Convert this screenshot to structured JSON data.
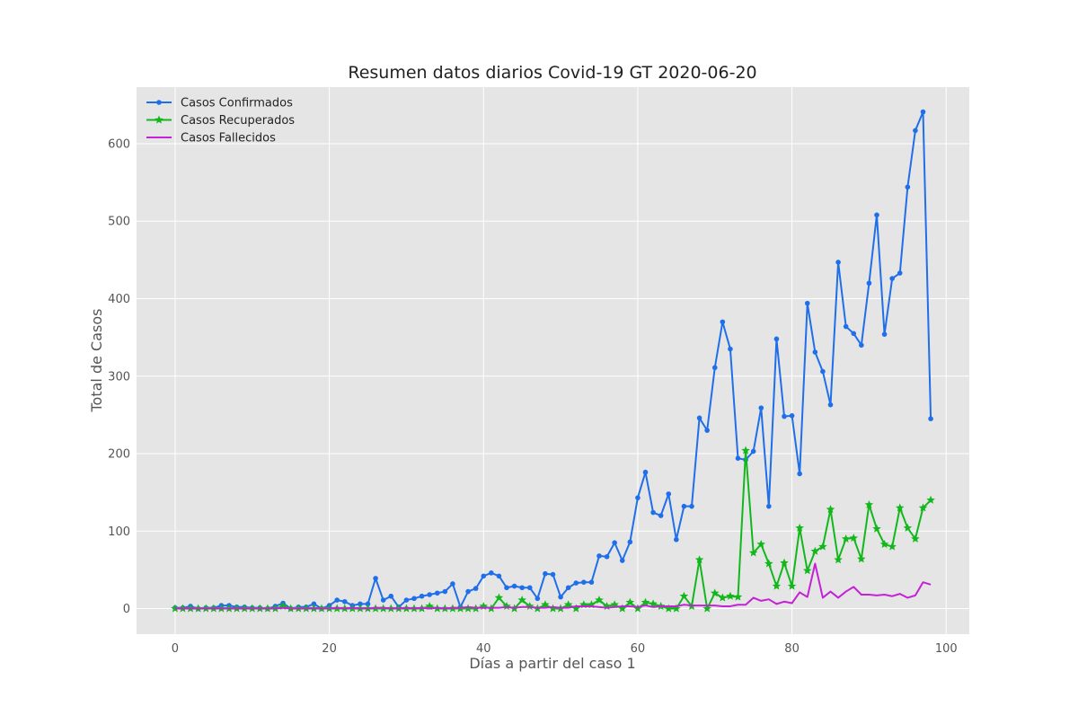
{
  "chart_data": {
    "type": "line",
    "title": "Resumen datos diarios Covid-19 GT 2020-06-20",
    "xlabel": "Días a partir del caso 1",
    "ylabel": "Total de Casos",
    "xlim": [
      -5,
      103
    ],
    "ylim": [
      -33,
      673
    ],
    "xticks": [
      0,
      20,
      40,
      60,
      80,
      100
    ],
    "yticks": [
      0,
      100,
      200,
      300,
      400,
      500,
      600
    ],
    "grid": true,
    "legend_position": "top-left",
    "x": [
      0,
      1,
      2,
      3,
      4,
      5,
      6,
      7,
      8,
      9,
      10,
      11,
      12,
      13,
      14,
      15,
      16,
      17,
      18,
      19,
      20,
      21,
      22,
      23,
      24,
      25,
      26,
      27,
      28,
      29,
      30,
      31,
      32,
      33,
      34,
      35,
      36,
      37,
      38,
      39,
      40,
      41,
      42,
      43,
      44,
      45,
      46,
      47,
      48,
      49,
      50,
      51,
      52,
      53,
      54,
      55,
      56,
      57,
      58,
      59,
      60,
      61,
      62,
      63,
      64,
      65,
      66,
      67,
      68,
      69,
      70,
      71,
      72,
      73,
      74,
      75,
      76,
      77,
      78,
      79,
      80,
      81,
      82,
      83,
      84,
      85,
      86,
      87,
      88,
      89,
      90,
      91,
      92,
      93,
      94,
      95,
      96,
      97,
      98
    ],
    "series": [
      {
        "name": "Casos Confirmados",
        "color": "#1f6fea",
        "marker": "circle",
        "values": [
          1,
          1,
          3,
          0,
          1,
          1,
          4,
          4,
          2,
          2,
          1,
          1,
          0,
          3,
          7,
          0,
          2,
          2,
          6,
          0,
          4,
          11,
          9,
          4,
          6,
          6,
          39,
          11,
          16,
          2,
          11,
          13,
          16,
          18,
          20,
          22,
          32,
          2,
          22,
          26,
          42,
          46,
          42,
          27,
          29,
          27,
          27,
          13,
          45,
          44,
          15,
          27,
          33,
          34,
          34,
          68,
          67,
          85,
          62,
          86,
          143,
          176,
          124,
          120,
          148,
          89,
          132,
          132,
          246,
          230,
          311,
          370,
          335,
          194,
          192,
          203,
          259,
          132,
          348,
          248,
          249,
          174,
          394,
          331,
          306,
          263,
          447,
          364,
          355,
          340,
          420,
          508,
          354,
          426,
          433,
          544,
          617,
          641,
          245
        ]
      },
      {
        "name": "Casos Recuperados",
        "color": "#12b81b",
        "marker": "star",
        "values": [
          0,
          0,
          0,
          0,
          0,
          0,
          0,
          0,
          0,
          0,
          0,
          0,
          0,
          0,
          3,
          0,
          0,
          0,
          0,
          0,
          0,
          0,
          0,
          0,
          0,
          0,
          0,
          0,
          0,
          0,
          0,
          0,
          0,
          3,
          0,
          0,
          0,
          0,
          0,
          0,
          3,
          0,
          14,
          3,
          0,
          11,
          3,
          0,
          5,
          0,
          0,
          5,
          0,
          5,
          5,
          11,
          3,
          5,
          0,
          8,
          0,
          8,
          6,
          3,
          0,
          0,
          16,
          3,
          63,
          0,
          20,
          14,
          16,
          15,
          204,
          72,
          83,
          58,
          29,
          59,
          29,
          104,
          49,
          74,
          80,
          128,
          63,
          90,
          91,
          64,
          134,
          103,
          83,
          80,
          130,
          104,
          90,
          130,
          140
        ]
      },
      {
        "name": "Casos Fallecidos",
        "color": "#c322d6",
        "marker": "none",
        "values": [
          0,
          0,
          0,
          0,
          0,
          0,
          0,
          0,
          0,
          0,
          0,
          0,
          0,
          0,
          1,
          0,
          0,
          0,
          0,
          0,
          0,
          1,
          0,
          1,
          0,
          0,
          1,
          1,
          0,
          0,
          1,
          0,
          1,
          0,
          1,
          0,
          1,
          1,
          2,
          1,
          1,
          1,
          1,
          2,
          1,
          2,
          2,
          1,
          1,
          2,
          1,
          1,
          3,
          3,
          3,
          2,
          1,
          2,
          3,
          3,
          2,
          4,
          2,
          3,
          3,
          3,
          5,
          4,
          4,
          4,
          4,
          3,
          3,
          5,
          5,
          14,
          10,
          12,
          6,
          9,
          7,
          21,
          15,
          58,
          14,
          22,
          14,
          22,
          28,
          18,
          18,
          17,
          18,
          16,
          19,
          14,
          17,
          34,
          31
        ]
      }
    ]
  }
}
